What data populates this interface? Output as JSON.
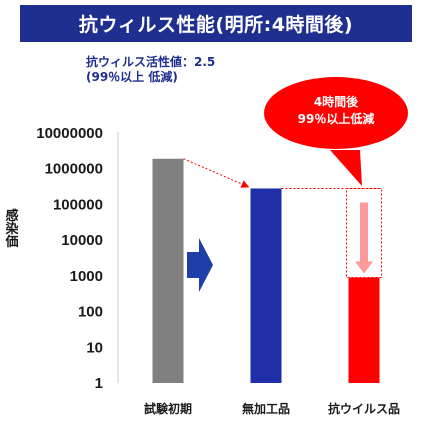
{
  "header": {
    "title": "抗ウィルス性能(明所:4時間後)"
  },
  "note": {
    "line1": "抗ウィルス活性値：2.5",
    "line2": "(99％以上 低減)"
  },
  "callout": {
    "line1": "4時間後",
    "line2": "99％以上低減"
  },
  "colors": {
    "title_bg": "#1f2f8f",
    "bar_initial": "#808080",
    "bar_untreated": "#1f2fa8",
    "bar_treated": "#ff0000",
    "arrow_blue": "#1f3fa8",
    "arrow_pink": "#ff9a9a"
  },
  "chart_data": {
    "type": "bar",
    "title": "",
    "xlabel": "",
    "ylabel": "感染価",
    "yscale": "log",
    "ylim": [
      1,
      10000000
    ],
    "yticks": [
      "1",
      "10",
      "100",
      "1000",
      "10000",
      "100000",
      "1000000",
      "10000000"
    ],
    "categories": [
      "試験初期",
      "無加工品",
      "抗ウイルス品"
    ],
    "values": [
      1900000,
      280000,
      900
    ],
    "grid": false,
    "legend": "none"
  }
}
